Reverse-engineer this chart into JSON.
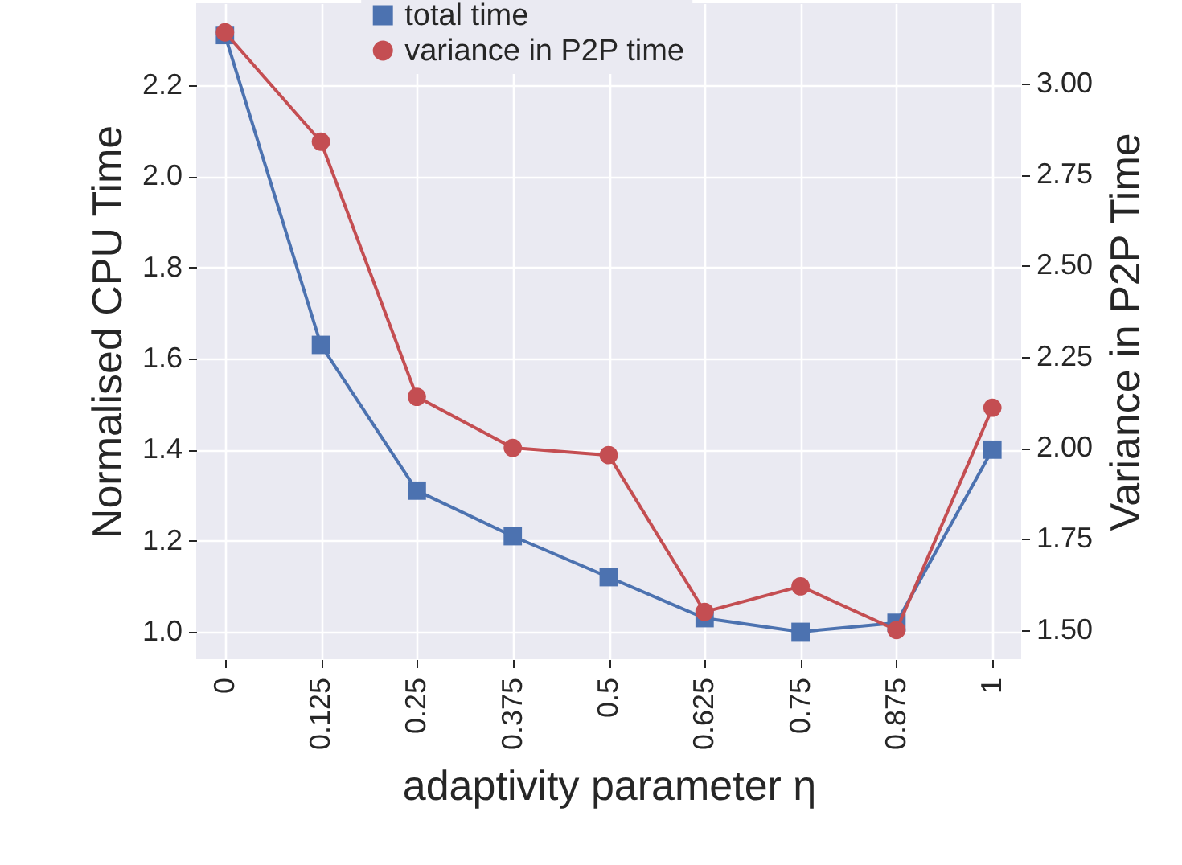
{
  "chart_data": {
    "type": "line",
    "xlabel": "adaptivity parameter η",
    "ylabel": "Normalised CPU Time",
    "y2label": "Variance in P2P Time",
    "categories": [
      "0",
      "0.125",
      "0.25",
      "0.375",
      "0.5",
      "0.625",
      "0.75",
      "0.875",
      "1"
    ],
    "series": [
      {
        "name": "total time",
        "color": "#4c72b0",
        "marker": "square",
        "values": [
          2.31,
          1.63,
          1.31,
          1.21,
          1.12,
          1.03,
          1.0,
          1.02,
          1.4
        ]
      },
      {
        "name": "variance in P2P time",
        "color": "#c44e52",
        "marker": "circle",
        "axis": "y2",
        "values": [
          3.14,
          2.84,
          2.14,
          2.0,
          1.98,
          1.55,
          1.62,
          1.5,
          2.11
        ]
      }
    ],
    "ylim": [
      0.94,
      2.38
    ],
    "yticks": [
      {
        "value": 1.0,
        "label": "1.0"
      },
      1.2,
      1.4,
      1.6,
      1.8,
      {
        "value": 2.0,
        "label": "2.0"
      },
      2.2
    ],
    "y2lim": [
      1.42,
      3.22
    ],
    "y2ticks": [
      {
        "value": 1.5,
        "label": "1.50"
      },
      {
        "value": 1.75,
        "label": "1.75"
      },
      {
        "value": 2.0,
        "label": "2.00"
      },
      {
        "value": 2.25,
        "label": "2.25"
      },
      {
        "value": 2.5,
        "label": "2.50"
      },
      {
        "value": 2.75,
        "label": "2.75"
      },
      {
        "value": 3.0,
        "label": "3.00"
      }
    ],
    "grid": true,
    "legend": "top"
  }
}
